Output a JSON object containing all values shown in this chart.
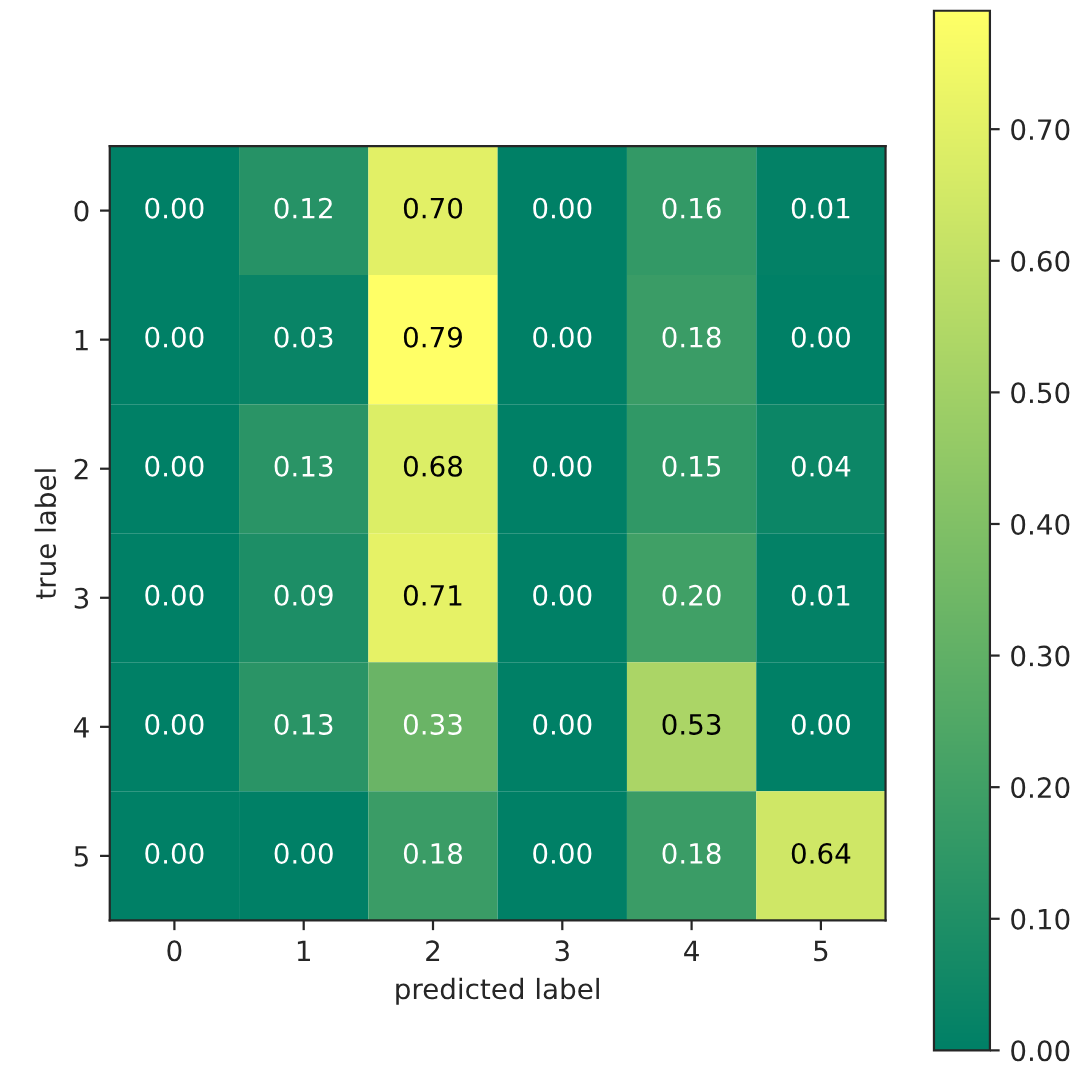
{
  "chart_data": {
    "type": "heatmap",
    "xlabel": "predicted label",
    "ylabel": "true label",
    "categories": [
      "0",
      "1",
      "2",
      "3",
      "4",
      "5"
    ],
    "y_categories": [
      "0",
      "1",
      "2",
      "3",
      "4",
      "5"
    ],
    "cells": [
      [
        0.0,
        0.12,
        0.7,
        0.0,
        0.16,
        0.01
      ],
      [
        0.0,
        0.03,
        0.79,
        0.0,
        0.18,
        0.0
      ],
      [
        0.0,
        0.13,
        0.68,
        0.0,
        0.15,
        0.04
      ],
      [
        0.0,
        0.09,
        0.71,
        0.0,
        0.2,
        0.01
      ],
      [
        0.0,
        0.13,
        0.33,
        0.0,
        0.53,
        0.0
      ],
      [
        0.0,
        0.0,
        0.18,
        0.0,
        0.18,
        0.64
      ]
    ],
    "cell_labels": [
      [
        "0.00",
        "0.12",
        "0.70",
        "0.00",
        "0.16",
        "0.01"
      ],
      [
        "0.00",
        "0.03",
        "0.79",
        "0.00",
        "0.18",
        "0.00"
      ],
      [
        "0.00",
        "0.13",
        "0.68",
        "0.00",
        "0.15",
        "0.04"
      ],
      [
        "0.00",
        "0.09",
        "0.71",
        "0.00",
        "0.20",
        "0.01"
      ],
      [
        "0.00",
        "0.13",
        "0.33",
        "0.00",
        "0.53",
        "0.00"
      ],
      [
        "0.00",
        "0.00",
        "0.18",
        "0.00",
        "0.18",
        "0.64"
      ]
    ],
    "clim": [
      0,
      0.79
    ],
    "cticks": [
      {
        "value": 0,
        "label": "0.00"
      },
      {
        "value": 0.1,
        "label": "0.10"
      },
      {
        "value": 0.2,
        "label": "0.20"
      },
      {
        "value": 0.3,
        "label": "0.30"
      },
      {
        "value": 0.4,
        "label": "0.40"
      },
      {
        "value": 0.5,
        "label": "0.50"
      },
      {
        "value": 0.6,
        "label": "0.60"
      },
      {
        "value": 0.7,
        "label": "0.70"
      }
    ],
    "grid": false
  }
}
